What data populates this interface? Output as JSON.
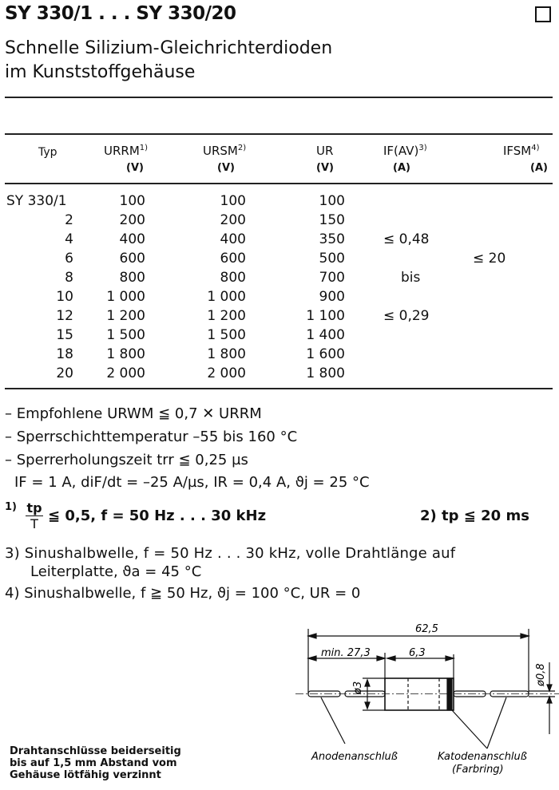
{
  "header": {
    "title": "SY 330/1 . . . SY 330/20",
    "subtitle_line1": "Schnelle Silizium-Gleichrichterdioden",
    "subtitle_line2": "im Kunststoffgehäuse"
  },
  "table": {
    "columns": [
      {
        "label": "Typ",
        "unit": ""
      },
      {
        "label": "URRM",
        "sup": "1)",
        "unit": "(V)"
      },
      {
        "label": "URSM",
        "sup": "2)",
        "unit": "(V)"
      },
      {
        "label": "UR",
        "sup": "",
        "unit": "(V)"
      },
      {
        "label": "IF(AV)",
        "sup": "3)",
        "unit": "(A)"
      },
      {
        "label": "IFSM",
        "sup": "4)",
        "unit": "(A)"
      }
    ],
    "rows": [
      {
        "typ": "SY 330/1",
        "urrm": "100",
        "ursm": "100",
        "ur": "100"
      },
      {
        "typ": "2",
        "urrm": "200",
        "ursm": "200",
        "ur": "150"
      },
      {
        "typ": "4",
        "urrm": "400",
        "ursm": "400",
        "ur": "350"
      },
      {
        "typ": "6",
        "urrm": "600",
        "ursm": "600",
        "ur": "500"
      },
      {
        "typ": "8",
        "urrm": "800",
        "ursm": "800",
        "ur": "700"
      },
      {
        "typ": "10",
        "urrm": "1 000",
        "ursm": "1 000",
        "ur": "900"
      },
      {
        "typ": "12",
        "urrm": "1 200",
        "ursm": "1 200",
        "ur": "1 100"
      },
      {
        "typ": "15",
        "urrm": "1 500",
        "ursm": "1 500",
        "ur": "1 400"
      },
      {
        "typ": "18",
        "urrm": "1 800",
        "ursm": "1 800",
        "ur": "1 600"
      },
      {
        "typ": "20",
        "urrm": "2 000",
        "ursm": "2 000",
        "ur": "1 800"
      }
    ],
    "if_av": {
      "upper": "≤ 0,48",
      "mid": "bis",
      "lower": "≤ 0,29"
    },
    "ifsm": "≤ 20"
  },
  "features": [
    "– Empfohlene URWM ≦ 0,7 ✕ URRM",
    "– Sperrschichttemperatur –55 bis 160 °C",
    "– Sperrerholungszeit trr ≦ 0,25 µs",
    "IF = 1 A, diF/dt = –25 A/µs, IR = 0,4 A, ϑj = 25 °C"
  ],
  "footnotes": {
    "fn1_mark": "1)",
    "fn1_num": "tp",
    "fn1_den": "T",
    "fn1_text": "≦ 0,5, f = 50 Hz . . . 30 kHz",
    "fn2": "2) tp ≦ 20 ms",
    "fn3_line1": "3) Sinushalbwelle,  f = 50 Hz . . . 30 kHz,  volle Drahtlänge auf",
    "fn3_line2": "Leiterplatte, ϑa = 45 °C",
    "fn4": "4) Sinushalbwelle, f ≧ 50 Hz,  ϑj = 100 °C, UR = 0"
  },
  "drawing": {
    "dim_total": "62,5",
    "dim_lead": "min. 27,3",
    "dim_body": "6,3",
    "dim_body_dia": "ø3",
    "dim_wire_dia": "ø0,8",
    "label_anode": "Anodenanschluß",
    "label_cathode": "Katodenanschluß",
    "label_cathode_note": "(Farbring)"
  },
  "note": {
    "line1": "Drahtanschlüsse beiderseitig",
    "line2": "bis auf 1,5 mm Abstand vom",
    "line3": "Gehäuse lötfähig verzinnt"
  }
}
